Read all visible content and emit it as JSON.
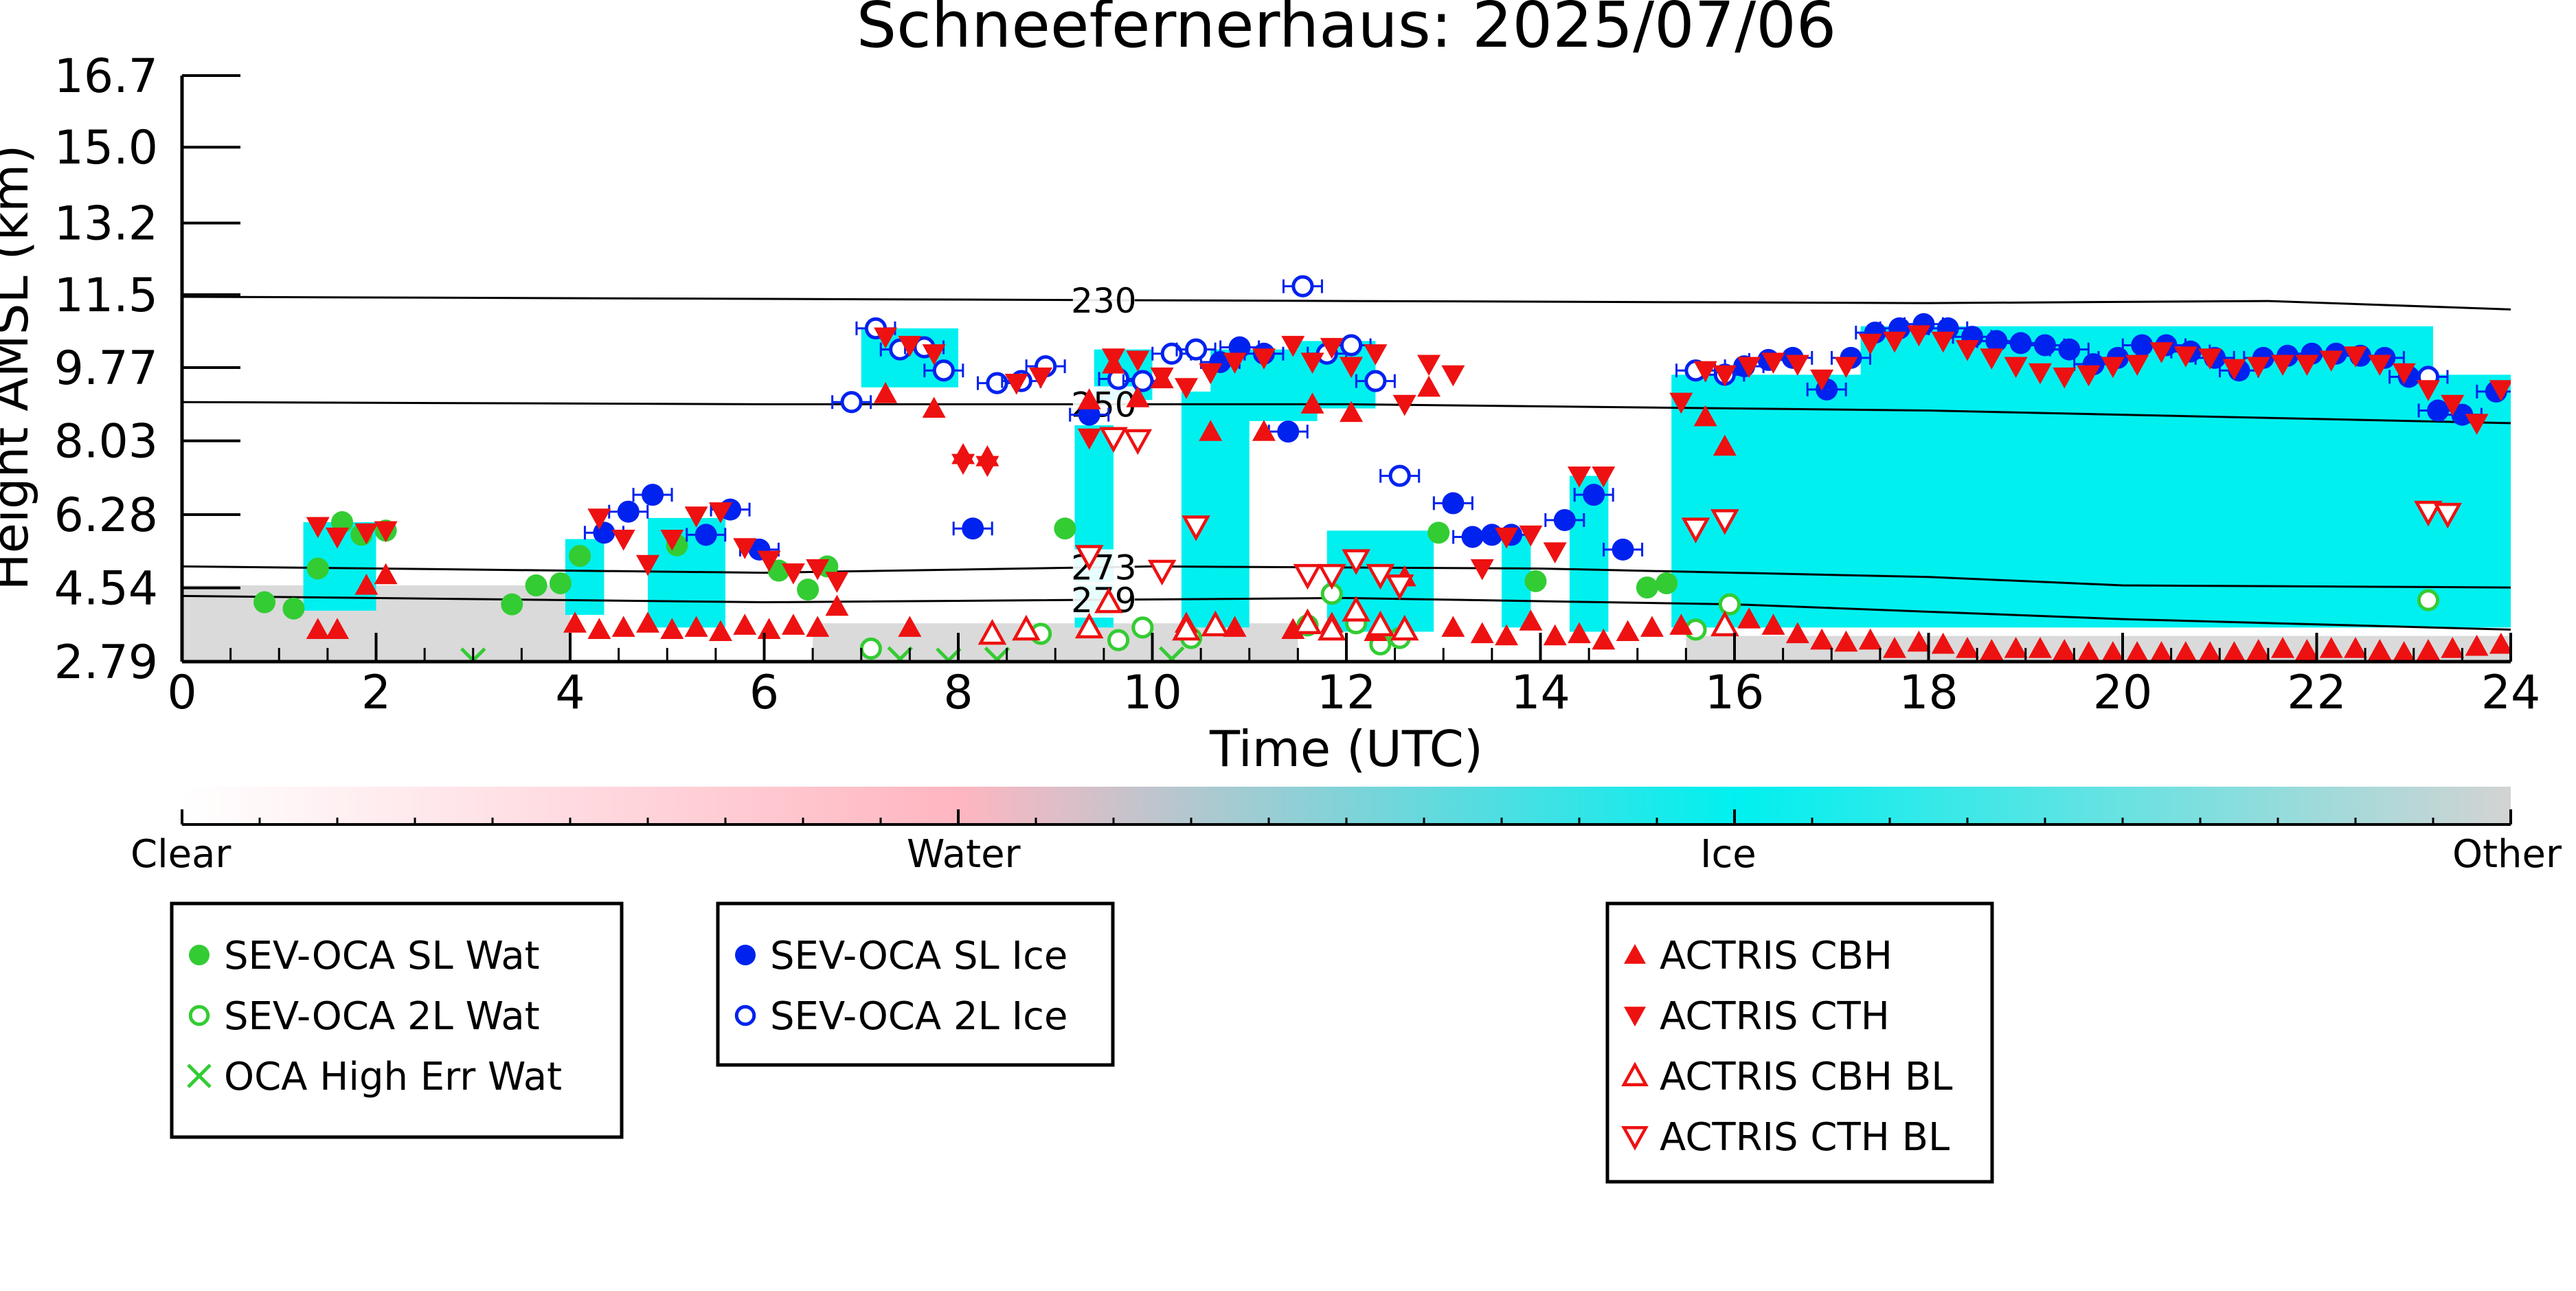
{
  "chart_data": {
    "type": "scatter",
    "title": "Schneefernerhaus: 2025/07/06",
    "xlabel": "Time (UTC)",
    "ylabel": "Height AMSL (km)",
    "xlim": [
      0,
      24
    ],
    "ylim": [
      2.79,
      16.7
    ],
    "xticks": [
      0,
      2,
      4,
      6,
      8,
      10,
      12,
      14,
      16,
      18,
      20,
      22,
      24
    ],
    "yticks": [
      "2.79",
      "4.54",
      "6.28",
      "8.03",
      "9.77",
      "11.5",
      "13.2",
      "15.0",
      "16.7"
    ],
    "grid": false,
    "background_mask": {
      "categories": [
        "Clear",
        "Water",
        "Ice",
        "Other"
      ],
      "colors": {
        "Clear": "#ffffff",
        "Water": "#ffb6c1",
        "Ice": "#00f0f0",
        "Other": "#d3d3d3"
      },
      "ice_regions": [
        {
          "x0": 1.25,
          "x1": 2.0,
          "y0": 4.0,
          "y1": 6.1
        },
        {
          "x0": 3.95,
          "x1": 4.35,
          "y0": 3.9,
          "y1": 5.7
        },
        {
          "x0": 4.8,
          "x1": 5.6,
          "y0": 3.6,
          "y1": 6.2
        },
        {
          "x0": 7.0,
          "x1": 8.0,
          "y0": 9.3,
          "y1": 10.7
        },
        {
          "x0": 9.2,
          "x1": 9.6,
          "y0": 3.6,
          "y1": 8.4
        },
        {
          "x0": 9.4,
          "x1": 10.0,
          "y0": 9.0,
          "y1": 10.2
        },
        {
          "x0": 10.3,
          "x1": 11.0,
          "y0": 3.6,
          "y1": 9.2
        },
        {
          "x0": 10.6,
          "x1": 11.7,
          "y0": 8.5,
          "y1": 10.2
        },
        {
          "x0": 11.5,
          "x1": 12.3,
          "y0": 8.8,
          "y1": 10.4
        },
        {
          "x0": 11.8,
          "x1": 12.9,
          "y0": 3.5,
          "y1": 5.9
        },
        {
          "x0": 13.6,
          "x1": 13.9,
          "y0": 3.6,
          "y1": 5.8
        },
        {
          "x0": 14.3,
          "x1": 14.7,
          "y0": 3.5,
          "y1": 7.2
        },
        {
          "x0": 15.35,
          "x1": 24.0,
          "y0": 3.6,
          "y1": 9.6
        },
        {
          "x0": 17.3,
          "x1": 23.2,
          "y0": 9.2,
          "y1": 10.75
        }
      ],
      "other_regions": [
        {
          "x0": 0.0,
          "x1": 4.0,
          "y0": 2.79,
          "y1": 4.6
        },
        {
          "x0": 6.5,
          "x1": 11.5,
          "y0": 2.79,
          "y1": 3.7
        },
        {
          "x0": 15.5,
          "x1": 24.0,
          "y0": 2.79,
          "y1": 3.4
        }
      ]
    },
    "contours": [
      {
        "label": "230",
        "x": [
          0,
          6,
          12,
          18,
          21.5,
          24
        ],
        "y": [
          11.45,
          11.4,
          11.35,
          11.3,
          11.35,
          11.15
        ],
        "label_x": 9.5
      },
      {
        "label": "250",
        "x": [
          0,
          6,
          12,
          18,
          21,
          24
        ],
        "y": [
          8.95,
          8.9,
          8.9,
          8.75,
          8.6,
          8.45
        ],
        "label_x": 9.5
      },
      {
        "label": "273",
        "x": [
          0,
          6,
          10,
          14,
          18,
          20,
          24
        ],
        "y": [
          5.05,
          4.9,
          5.05,
          5.0,
          4.8,
          4.6,
          4.55
        ],
        "label_x": 9.5
      },
      {
        "label": "279",
        "x": [
          0,
          6,
          12,
          16,
          20,
          24
        ],
        "y": [
          4.35,
          4.2,
          4.3,
          4.15,
          3.8,
          3.55
        ],
        "label_x": 9.5
      }
    ],
    "series": [
      {
        "name": "SEV-OCA SL Wat",
        "marker": "filled-circle",
        "color": "#33cc33",
        "x": [
          0.85,
          1.15,
          1.4,
          1.65,
          1.85,
          2.1,
          3.4,
          3.65,
          3.9,
          4.1,
          5.1,
          6.15,
          6.45,
          6.65,
          9.1,
          12.95,
          13.95,
          15.1,
          15.3
        ],
        "y": [
          4.2,
          4.05,
          5.0,
          6.1,
          5.8,
          5.9,
          4.15,
          4.6,
          4.65,
          5.3,
          5.55,
          4.95,
          4.5,
          5.05,
          5.95,
          5.85,
          4.7,
          4.55,
          4.65
        ]
      },
      {
        "name": "SEV-OCA 2L Wat",
        "marker": "open-circle",
        "color": "#33cc33",
        "x": [
          7.1,
          8.85,
          9.65,
          9.9,
          10.4,
          11.6,
          11.85,
          12.1,
          12.35,
          12.55,
          15.6,
          15.95,
          23.15
        ],
        "y": [
          3.1,
          3.45,
          3.3,
          3.6,
          3.35,
          3.65,
          4.4,
          3.7,
          3.2,
          3.35,
          3.55,
          4.15,
          4.25
        ]
      },
      {
        "name": "OCA High Err Wat",
        "marker": "x",
        "color": "#33cc33",
        "x": [
          3.0,
          7.4,
          7.9,
          8.4,
          10.2
        ],
        "y": [
          2.82,
          2.85,
          2.82,
          2.84,
          2.85
        ]
      },
      {
        "name": "SEV-OCA SL Ice",
        "marker": "filled-circle",
        "color": "#0022ee",
        "x": [
          4.35,
          4.6,
          4.85,
          5.4,
          5.65,
          5.95,
          8.15,
          9.35,
          10.7,
          10.9,
          11.15,
          11.4,
          13.1,
          13.3,
          13.5,
          13.7,
          14.25,
          14.55,
          14.85,
          16.1,
          16.35,
          16.6,
          16.95,
          17.2,
          17.45,
          17.7,
          17.95,
          18.2,
          18.45,
          18.7,
          18.95,
          19.2,
          19.45,
          19.7,
          19.95,
          20.2,
          20.45,
          20.7,
          20.95,
          21.2,
          21.45,
          21.7,
          21.95,
          22.2,
          22.45,
          22.7,
          22.95,
          23.25,
          23.5,
          23.85
        ],
        "y": [
          5.85,
          6.35,
          6.75,
          5.8,
          6.4,
          5.45,
          5.95,
          8.65,
          9.9,
          10.25,
          10.1,
          8.25,
          6.55,
          5.75,
          5.8,
          5.8,
          6.15,
          6.75,
          5.45,
          9.8,
          9.95,
          10.0,
          9.25,
          10.0,
          10.6,
          10.7,
          10.8,
          10.7,
          10.5,
          10.4,
          10.35,
          10.3,
          10.2,
          9.85,
          10.0,
          10.3,
          10.3,
          10.15,
          10.0,
          9.7,
          10.0,
          10.05,
          10.1,
          10.1,
          10.05,
          10.0,
          9.55,
          8.75,
          8.65,
          9.2
        ]
      },
      {
        "name": "SEV-OCA 2L Ice",
        "marker": "open-circle",
        "color": "#0022ee",
        "x": [
          6.9,
          7.15,
          7.4,
          7.65,
          7.85,
          8.4,
          8.65,
          8.9,
          9.65,
          9.9,
          10.2,
          10.45,
          11.55,
          11.8,
          12.05,
          12.3,
          12.55,
          15.6,
          15.9,
          23.15
        ],
        "y": [
          8.95,
          10.7,
          10.2,
          10.25,
          9.7,
          9.4,
          9.45,
          9.8,
          9.5,
          9.45,
          10.1,
          10.2,
          11.7,
          10.1,
          10.3,
          9.45,
          7.2,
          9.7,
          9.6,
          9.55
        ]
      },
      {
        "name": "ACTRIS CBH",
        "marker": "triangle-up",
        "color": "#ee1111",
        "x": [
          1.4,
          1.6,
          1.9,
          2.1,
          4.05,
          4.3,
          4.55,
          4.8,
          5.05,
          5.3,
          5.55,
          5.8,
          6.05,
          6.3,
          6.55,
          6.75,
          7.25,
          7.5,
          7.75,
          8.05,
          8.3,
          9.35,
          9.6,
          9.85,
          10.1,
          10.35,
          10.6,
          10.85,
          11.15,
          11.45,
          11.65,
          11.85,
          12.05,
          12.3,
          12.6,
          12.85,
          13.1,
          13.4,
          13.65,
          13.9,
          14.15,
          14.4,
          14.65,
          14.9,
          15.15,
          15.45,
          15.7,
          15.9,
          16.15,
          16.4,
          16.65,
          16.9,
          17.15,
          17.4,
          17.65,
          17.9,
          18.15,
          18.4,
          18.65,
          18.9,
          19.15,
          19.4,
          19.65,
          19.9,
          20.15,
          20.4,
          20.65,
          20.9,
          21.15,
          21.4,
          21.65,
          21.9,
          22.15,
          22.4,
          22.65,
          22.9,
          23.15,
          23.4,
          23.65,
          23.9
        ],
        "y": [
          3.55,
          3.55,
          4.6,
          4.85,
          3.7,
          3.55,
          3.6,
          3.7,
          3.55,
          3.6,
          3.5,
          3.65,
          3.55,
          3.65,
          3.6,
          4.1,
          9.15,
          3.6,
          8.8,
          7.7,
          7.65,
          9.0,
          9.85,
          9.05,
          9.5,
          3.7,
          8.25,
          3.6,
          8.25,
          3.55,
          8.9,
          3.7,
          8.7,
          3.5,
          4.8,
          9.3,
          3.6,
          3.45,
          3.4,
          3.75,
          3.4,
          3.45,
          3.3,
          3.5,
          3.6,
          3.65,
          8.6,
          7.9,
          3.8,
          3.65,
          3.45,
          3.3,
          3.25,
          3.3,
          3.1,
          3.25,
          3.2,
          3.1,
          3.05,
          3.1,
          3.1,
          3.05,
          3.0,
          3.0,
          3.0,
          3.0,
          3.0,
          3.0,
          3.0,
          3.05,
          3.1,
          3.05,
          3.1,
          3.1,
          3.05,
          3.0,
          3.05,
          3.1,
          3.15,
          3.2
        ]
      },
      {
        "name": "ACTRIS CTH",
        "marker": "triangle-down",
        "color": "#ee1111",
        "x": [
          1.4,
          1.6,
          1.9,
          2.1,
          4.3,
          4.55,
          4.8,
          5.05,
          5.3,
          5.55,
          5.8,
          6.05,
          6.3,
          6.55,
          6.75,
          7.25,
          7.5,
          7.75,
          8.05,
          8.3,
          8.6,
          8.85,
          9.35,
          9.6,
          9.85,
          10.1,
          10.35,
          10.6,
          10.85,
          11.15,
          11.45,
          11.65,
          11.85,
          12.05,
          12.3,
          12.6,
          12.85,
          13.1,
          13.4,
          13.65,
          13.9,
          14.15,
          14.4,
          14.65,
          15.45,
          15.7,
          15.9,
          16.15,
          16.4,
          16.65,
          16.9,
          17.15,
          17.4,
          17.65,
          17.9,
          18.15,
          18.4,
          18.65,
          18.9,
          19.15,
          19.4,
          19.65,
          19.9,
          20.15,
          20.4,
          20.65,
          20.9,
          21.15,
          21.4,
          21.65,
          21.9,
          22.15,
          22.4,
          22.65,
          22.9,
          23.15,
          23.4,
          23.65,
          23.9
        ],
        "y": [
          6.0,
          5.75,
          5.85,
          5.9,
          6.2,
          5.7,
          5.1,
          5.7,
          6.25,
          6.35,
          5.5,
          5.2,
          4.9,
          5.0,
          4.7,
          10.5,
          10.3,
          10.1,
          7.5,
          7.45,
          9.4,
          9.55,
          8.1,
          10.0,
          9.95,
          9.55,
          9.3,
          9.65,
          9.9,
          10.0,
          10.3,
          9.9,
          10.25,
          9.8,
          10.1,
          8.9,
          9.85,
          9.6,
          5.0,
          5.75,
          5.8,
          5.4,
          7.2,
          7.2,
          8.95,
          9.7,
          9.6,
          9.8,
          9.9,
          9.85,
          9.5,
          9.8,
          10.35,
          10.4,
          10.55,
          10.4,
          10.2,
          10.0,
          9.8,
          9.65,
          9.55,
          9.6,
          9.8,
          9.85,
          10.15,
          10.05,
          10.0,
          9.75,
          9.8,
          9.85,
          9.85,
          9.95,
          10.05,
          9.85,
          9.65,
          9.25,
          8.9,
          8.45,
          9.25
        ]
      },
      {
        "name": "ACTRIS CBH BL",
        "marker": "open-triangle-up",
        "color": "#ee1111",
        "x": [
          8.35,
          8.7,
          9.35,
          9.55,
          10.35,
          10.65,
          11.6,
          11.85,
          12.1,
          12.35,
          12.6,
          15.9
        ],
        "y": [
          3.45,
          3.55,
          3.6,
          4.2,
          3.55,
          3.65,
          3.7,
          3.55,
          4.0,
          3.65,
          3.55,
          3.65
        ]
      },
      {
        "name": "ACTRIS CTH BL",
        "marker": "open-triangle-down",
        "color": "#ee1111",
        "x": [
          9.35,
          9.6,
          9.85,
          10.1,
          10.45,
          11.6,
          11.85,
          12.1,
          12.35,
          12.55,
          15.6,
          15.9,
          23.15,
          23.35
        ],
        "y": [
          5.3,
          8.1,
          8.05,
          4.95,
          6.0,
          4.85,
          4.85,
          5.2,
          4.85,
          4.6,
          5.95,
          6.15,
          6.35,
          6.3
        ]
      }
    ],
    "colorbar": {
      "labels": [
        "Clear",
        "Water",
        "Ice",
        "Other"
      ],
      "colors": [
        "#ffffff",
        "#ffb6c1",
        "#00f0f0",
        "#d3d3d3"
      ]
    },
    "legends": [
      {
        "items": [
          {
            "name": "SEV-OCA SL Wat",
            "marker": "filled-circle",
            "color": "#33cc33"
          },
          {
            "name": "SEV-OCA 2L Wat",
            "marker": "open-circle",
            "color": "#33cc33"
          },
          {
            "name": "OCA High Err Wat",
            "marker": "x",
            "color": "#33cc33"
          }
        ]
      },
      {
        "items": [
          {
            "name": "SEV-OCA SL Ice",
            "marker": "filled-circle",
            "color": "#0022ee"
          },
          {
            "name": "SEV-OCA 2L Ice",
            "marker": "open-circle",
            "color": "#0022ee"
          }
        ]
      },
      {
        "items": [
          {
            "name": "ACTRIS CBH",
            "marker": "triangle-up",
            "color": "#ee1111"
          },
          {
            "name": "ACTRIS CTH",
            "marker": "triangle-down",
            "color": "#ee1111"
          },
          {
            "name": "ACTRIS CBH BL",
            "marker": "open-triangle-up",
            "color": "#ee1111"
          },
          {
            "name": "ACTRIS CTH BL",
            "marker": "open-triangle-down",
            "color": "#ee1111"
          }
        ]
      }
    ]
  }
}
